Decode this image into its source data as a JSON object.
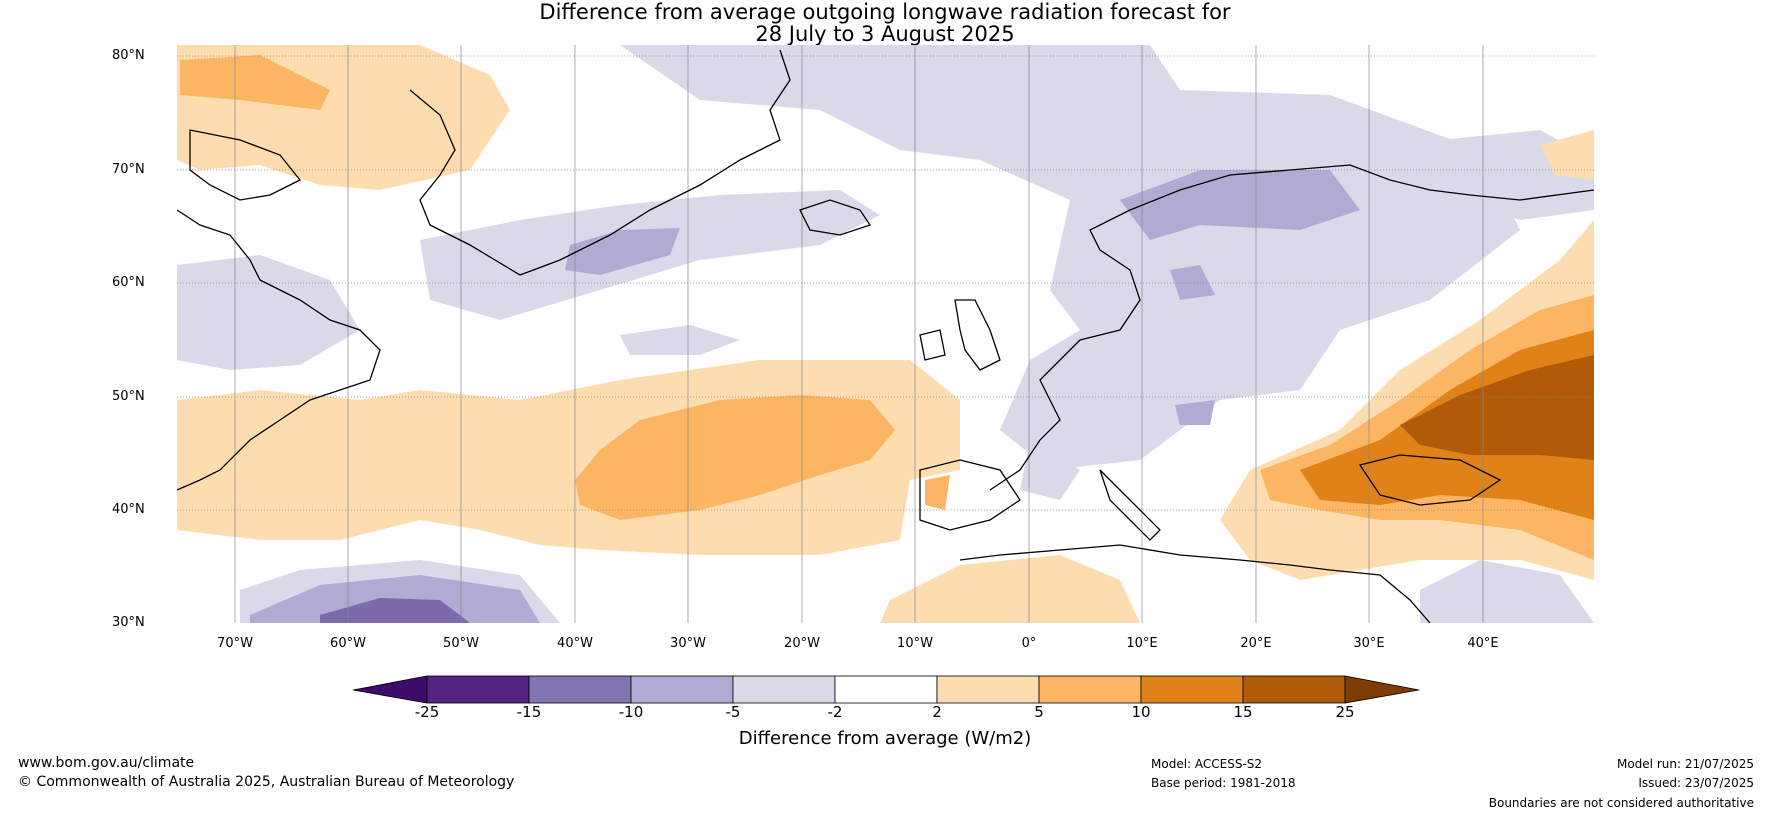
{
  "title_line1": "Difference from average outgoing longwave radiation forecast for",
  "title_line2": "28 July to 3 August 2025",
  "map": {
    "lat_labels": [
      "80°N",
      "70°N",
      "60°N",
      "50°N",
      "40°N",
      "30°N"
    ],
    "lon_labels": [
      "70°W",
      "60°W",
      "50°W",
      "40°W",
      "30°W",
      "20°W",
      "10°W",
      "0°",
      "10°E",
      "20°E",
      "30°E",
      "40°E"
    ],
    "colors": {
      "strong_neg": "#7d6aaa",
      "mid_neg": "#b1aad3",
      "weak_neg": "#d9d9ea",
      "weak_pos": "#fdddb0",
      "mid_pos": "#fbb563",
      "strong_pos": "#e08217",
      "vstrong_pos": "#b15a08"
    }
  },
  "colorbar": {
    "labels": [
      "-25",
      "-15",
      "-10",
      "-5",
      "-2",
      "2",
      "5",
      "10",
      "15",
      "25"
    ],
    "colors": [
      "#3f0b6b",
      "#552483",
      "#8174b0",
      "#b1aad3",
      "#d9d9ea",
      "#ffffff",
      "#fdddb0",
      "#fbb563",
      "#e08217",
      "#b15a08",
      "#7e3c04"
    ],
    "title": "Difference from average (W/m2)"
  },
  "footer": {
    "website": "www.bom.gov.au/climate",
    "copyright": "© Commonwealth of Australia 2025, Australian Bureau of Meteorology",
    "model": "Model: ACCESS-S2",
    "base_period": "Base period: 1981-2018",
    "model_run": "Model run: 21/07/2025",
    "issued": "Issued: 23/07/2025",
    "disclaimer": "Boundaries are not considered authoritative"
  }
}
